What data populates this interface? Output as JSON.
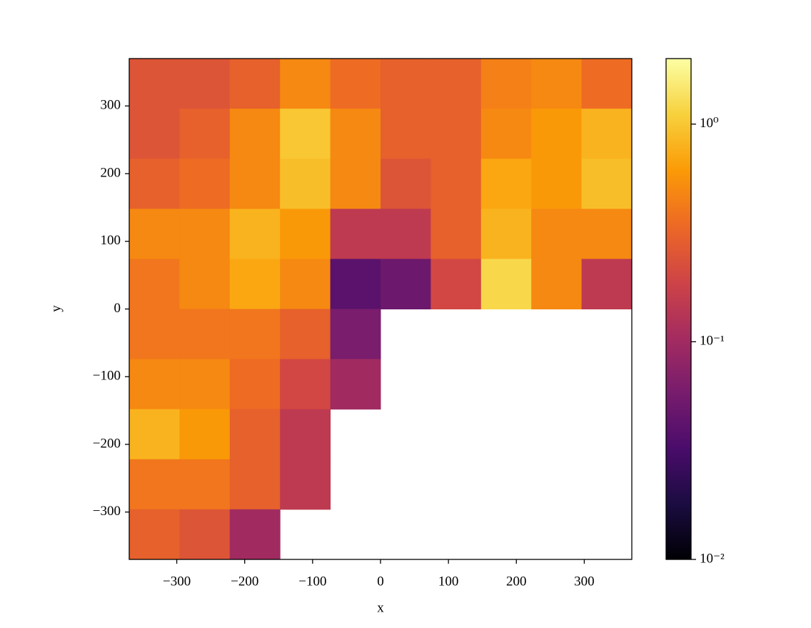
{
  "chart_data": {
    "type": "heatmap",
    "colormap": "inferno",
    "x_label": "x",
    "y_label": "y",
    "xlim": [
      -370,
      370
    ],
    "ylim": [
      -370,
      370
    ],
    "xticks": [
      {
        "value": -300,
        "label": "−300"
      },
      {
        "value": -200,
        "label": "−200"
      },
      {
        "value": -100,
        "label": "−100"
      },
      0,
      100,
      200,
      300
    ],
    "yticks": [
      {
        "value": -300,
        "label": "−300"
      },
      {
        "value": -200,
        "label": "−200"
      },
      {
        "value": -100,
        "label": "−100"
      },
      0,
      100,
      200,
      300
    ],
    "x_edges": [
      -370,
      -296,
      -222,
      -148,
      -74,
      0,
      74,
      148,
      222,
      296,
      370
    ],
    "y_edges": [
      370,
      296,
      222,
      148,
      74,
      0,
      -74,
      -148,
      -222,
      -296,
      -370
    ],
    "z": [
      [
        0.25,
        0.25,
        0.3,
        0.5,
        0.35,
        0.3,
        0.3,
        0.45,
        0.5,
        0.35
      ],
      [
        0.25,
        0.3,
        0.5,
        1.0,
        0.5,
        0.3,
        0.3,
        0.5,
        0.6,
        0.8
      ],
      [
        0.3,
        0.35,
        0.5,
        0.9,
        0.5,
        0.25,
        0.3,
        0.7,
        0.6,
        0.9
      ],
      [
        0.5,
        0.5,
        0.8,
        0.6,
        0.15,
        0.15,
        0.3,
        0.8,
        0.5,
        0.5
      ],
      [
        0.4,
        0.5,
        0.7,
        0.5,
        0.04,
        0.05,
        0.2,
        1.2,
        0.5,
        0.15
      ],
      [
        0.4,
        0.4,
        0.4,
        0.3,
        0.06,
        null,
        null,
        null,
        null,
        null
      ],
      [
        0.5,
        0.5,
        0.35,
        0.2,
        0.1,
        null,
        null,
        null,
        null,
        null
      ],
      [
        0.8,
        0.6,
        0.3,
        0.15,
        null,
        null,
        null,
        null,
        null,
        null
      ],
      [
        0.4,
        0.4,
        0.3,
        0.15,
        null,
        null,
        null,
        null,
        null,
        null
      ],
      [
        0.3,
        0.25,
        0.1,
        null,
        null,
        null,
        null,
        null,
        null,
        null
      ]
    ],
    "colorbar": {
      "log_scale": true,
      "clim": [
        0.01,
        2
      ],
      "ticks": [
        {
          "value": 0.01,
          "label": "10⁻²"
        },
        {
          "value": 0.1,
          "label": "10⁻¹"
        },
        {
          "value": 1,
          "label": "10⁰"
        }
      ]
    }
  }
}
